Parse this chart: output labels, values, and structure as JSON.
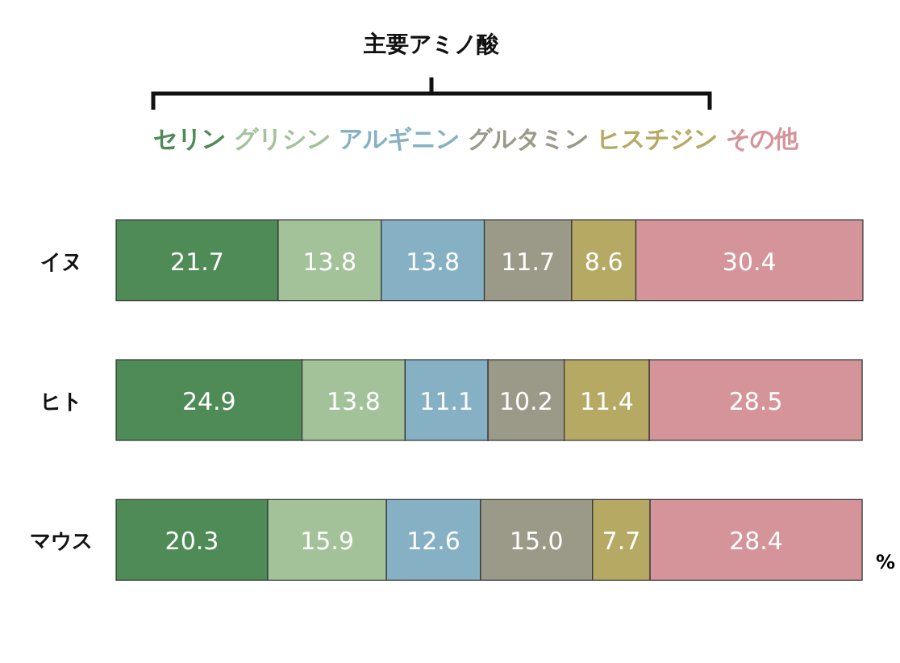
{
  "chart_data": {
    "type": "bar",
    "orientation": "horizontal",
    "stacked": true,
    "title": "主要アミノ酸",
    "xlabel": "%",
    "categories": [
      "イヌ",
      "ヒト",
      "マウス"
    ],
    "xlim": [
      0,
      100
    ],
    "legend": "top",
    "series": [
      {
        "name": "セリン",
        "color": "#4f8b57",
        "values": [
          21.7,
          24.9,
          20.3
        ],
        "value_labels": [
          "21.7",
          "24.9",
          "20.3"
        ]
      },
      {
        "name": "グリシン",
        "color": "#a3c29a",
        "values": [
          13.8,
          13.8,
          15.9
        ],
        "value_labels": [
          "13.8",
          "13.8",
          "15.9"
        ]
      },
      {
        "name": "アルギニン",
        "color": "#86b0c4",
        "values": [
          13.8,
          11.1,
          12.6
        ],
        "value_labels": [
          "13.8",
          "11.1",
          "12.6"
        ]
      },
      {
        "name": "グルタミン",
        "color": "#9b9a88",
        "values": [
          11.7,
          10.2,
          15.0
        ],
        "value_labels": [
          "11.7",
          "10.2",
          "15.0"
        ]
      },
      {
        "name": "ヒスチジン",
        "color": "#b6a964",
        "values": [
          8.6,
          11.4,
          7.7
        ],
        "value_labels": [
          "8.6",
          "11.4",
          "7.7"
        ]
      },
      {
        "name": "その他",
        "color": "#d49499",
        "values": [
          30.4,
          28.5,
          28.4
        ],
        "value_labels": [
          "30.4",
          "28.5",
          "28.4"
        ]
      }
    ]
  }
}
